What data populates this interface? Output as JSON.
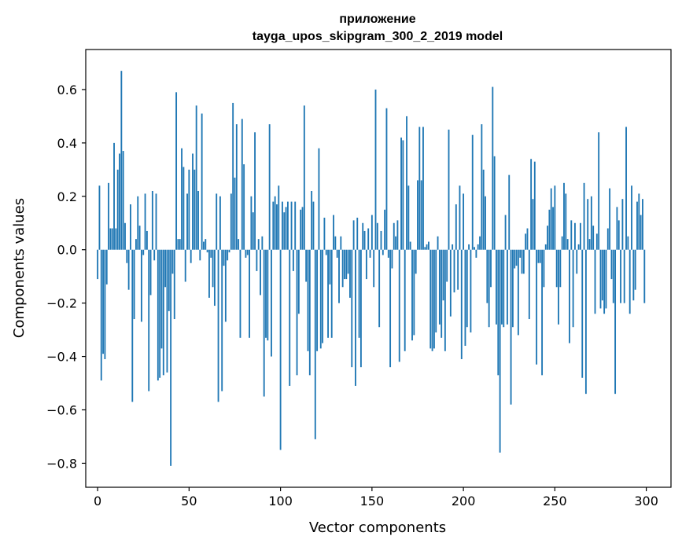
{
  "chart_data": {
    "type": "bar",
    "title_lines": [
      "приложение",
      "tayga_upos_skipgram_300_2_2019 model"
    ],
    "xlabel": "Vector components",
    "ylabel": "Components values",
    "xlim": [
      -6.5,
      313.5
    ],
    "ylim": [
      -0.89,
      0.75
    ],
    "x_ticks": [
      {
        "value": 0,
        "label": "0"
      },
      {
        "value": 50,
        "label": "50"
      },
      {
        "value": 100,
        "label": "100"
      },
      {
        "value": 150,
        "label": "150"
      },
      {
        "value": 200,
        "label": "200"
      },
      {
        "value": 250,
        "label": "250"
      },
      {
        "value": 300,
        "label": "300"
      }
    ],
    "y_ticks": [
      {
        "value": 0.6,
        "label": "0.6"
      },
      {
        "value": 0.4,
        "label": "0.4"
      },
      {
        "value": 0.2,
        "label": "0.2"
      },
      {
        "value": 0.0,
        "label": "0.0"
      },
      {
        "value": -0.2,
        "label": "−0.2"
      },
      {
        "value": -0.4,
        "label": "−0.4"
      },
      {
        "value": -0.6,
        "label": "−0.6"
      },
      {
        "value": -0.8,
        "label": "−0.8"
      }
    ],
    "bar_color": "#1f77b4",
    "grid": false,
    "values": [
      -0.11,
      0.24,
      -0.49,
      -0.39,
      -0.41,
      -0.13,
      0.25,
      0.08,
      0.08,
      0.4,
      0.08,
      0.3,
      0.36,
      0.67,
      0.37,
      0.1,
      -0.05,
      -0.15,
      0.17,
      -0.57,
      -0.26,
      0.04,
      0.2,
      0.09,
      -0.27,
      -0.02,
      0.21,
      0.07,
      -0.53,
      -0.17,
      0.22,
      -0.04,
      0.21,
      -0.49,
      -0.48,
      -0.37,
      -0.47,
      -0.14,
      -0.46,
      -0.23,
      -0.81,
      -0.09,
      -0.26,
      0.59,
      0.04,
      0.04,
      0.38,
      0.31,
      -0.12,
      0.21,
      0.3,
      -0.05,
      0.36,
      0.3,
      0.54,
      0.22,
      -0.04,
      0.51,
      0.03,
      0.04,
      -0.01,
      -0.18,
      -0.03,
      -0.14,
      -0.21,
      0.21,
      -0.57,
      0.2,
      -0.53,
      -0.06,
      -0.27,
      -0.04,
      -0.01,
      0.21,
      0.55,
      0.27,
      0.47,
      0.04,
      -0.33,
      0.49,
      0.32,
      -0.03,
      -0.02,
      -0.33,
      0.2,
      0.14,
      0.44,
      -0.08,
      0.04,
      -0.17,
      0.05,
      -0.55,
      -0.33,
      -0.34,
      0.47,
      -0.4,
      0.18,
      0.2,
      0.17,
      0.24,
      -0.75,
      0.18,
      0.14,
      0.16,
      0.18,
      -0.51,
      0.18,
      -0.08,
      0.18,
      -0.47,
      -0.24,
      0.15,
      0.16,
      0.54,
      -0.12,
      -0.38,
      -0.47,
      0.22,
      0.18,
      -0.71,
      -0.38,
      0.38,
      -0.37,
      -0.35,
      0.12,
      -0.02,
      -0.33,
      -0.13,
      -0.33,
      0.13,
      0.05,
      -0.03,
      -0.2,
      0.05,
      -0.14,
      -0.11,
      -0.11,
      -0.09,
      -0.18,
      -0.44,
      0.11,
      -0.51,
      0.12,
      -0.33,
      -0.44,
      0.1,
      0.07,
      -0.11,
      0.08,
      -0.03,
      0.13,
      -0.14,
      0.6,
      0.1,
      -0.29,
      0.07,
      -0.02,
      0.15,
      0.53,
      -0.03,
      -0.44,
      -0.07,
      0.1,
      0.05,
      0.11,
      -0.42,
      0.42,
      0.41,
      -0.38,
      0.5,
      0.24,
      0.03,
      -0.34,
      -0.32,
      -0.09,
      0.26,
      0.46,
      0.26,
      0.46,
      0.01,
      0.02,
      0.03,
      -0.37,
      -0.38,
      -0.37,
      -0.31,
      0.05,
      -0.28,
      -0.33,
      -0.19,
      -0.38,
      -0.12,
      0.45,
      -0.25,
      0.02,
      -0.16,
      0.17,
      -0.15,
      0.24,
      -0.41,
      0.21,
      -0.36,
      -0.29,
      0.02,
      -0.31,
      0.43,
      0.01,
      -0.03,
      0.02,
      0.05,
      0.47,
      0.3,
      0.2,
      -0.2,
      -0.29,
      -0.14,
      0.61,
      0.35,
      -0.28,
      -0.47,
      -0.76,
      -0.28,
      -0.29,
      0.13,
      -0.28,
      0.28,
      -0.58,
      -0.29,
      -0.07,
      -0.06,
      -0.32,
      -0.03,
      -0.09,
      -0.09,
      0.06,
      0.08,
      -0.26,
      0.34,
      0.19,
      0.33,
      -0.43,
      -0.05,
      -0.05,
      -0.47,
      -0.14,
      0.02,
      0.09,
      0.15,
      0.23,
      0.16,
      0.24,
      -0.14,
      -0.28,
      -0.14,
      0.05,
      0.25,
      0.21,
      0.04,
      -0.35,
      0.11,
      -0.29,
      0.1,
      -0.09,
      0.02,
      0.1,
      -0.48,
      0.25,
      -0.54,
      0.19,
      0.04,
      0.2,
      0.09,
      -0.24,
      0.06,
      0.44,
      -0.22,
      -0.19,
      -0.24,
      -0.22,
      0.08,
      0.23,
      -0.11,
      -0.2,
      -0.54,
      0.16,
      0.11,
      -0.2,
      0.19,
      -0.2,
      0.46,
      0.05,
      -0.24,
      0.24,
      -0.19,
      -0.15,
      0.18,
      0.21,
      0.13,
      0.19,
      -0.2
    ]
  }
}
